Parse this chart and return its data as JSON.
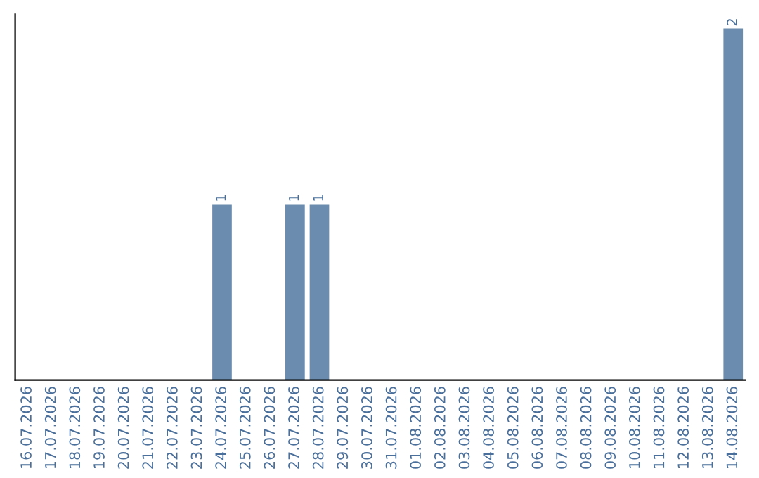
{
  "chart_data": {
    "type": "bar",
    "categories": [
      "16.07.2026",
      "17.07.2026",
      "18.07.2026",
      "19.07.2026",
      "20.07.2026",
      "21.07.2026",
      "22.07.2026",
      "23.07.2026",
      "24.07.2026",
      "25.07.2026",
      "26.07.2026",
      "27.07.2026",
      "28.07.2026",
      "29.07.2026",
      "30.07.2026",
      "31.07.2026",
      "01.08.2026",
      "02.08.2026",
      "03.08.2026",
      "04.08.2026",
      "05.08.2026",
      "06.08.2026",
      "07.08.2026",
      "08.08.2026",
      "09.08.2026",
      "10.08.2026",
      "11.08.2026",
      "12.08.2026",
      "13.08.2026",
      "14.08.2026"
    ],
    "values": [
      0,
      0,
      0,
      0,
      0,
      0,
      0,
      0,
      1,
      0,
      0,
      1,
      1,
      0,
      0,
      0,
      0,
      0,
      0,
      0,
      0,
      0,
      0,
      0,
      0,
      0,
      0,
      0,
      0,
      2
    ],
    "value_labels": [
      null,
      null,
      null,
      null,
      null,
      null,
      null,
      null,
      "1",
      null,
      null,
      "1",
      "1",
      null,
      null,
      null,
      null,
      null,
      null,
      null,
      null,
      null,
      null,
      null,
      null,
      null,
      null,
      null,
      null,
      "2"
    ],
    "color": "#6b8cae",
    "tick_labels": "x",
    "grid": false,
    "legend": false
  }
}
